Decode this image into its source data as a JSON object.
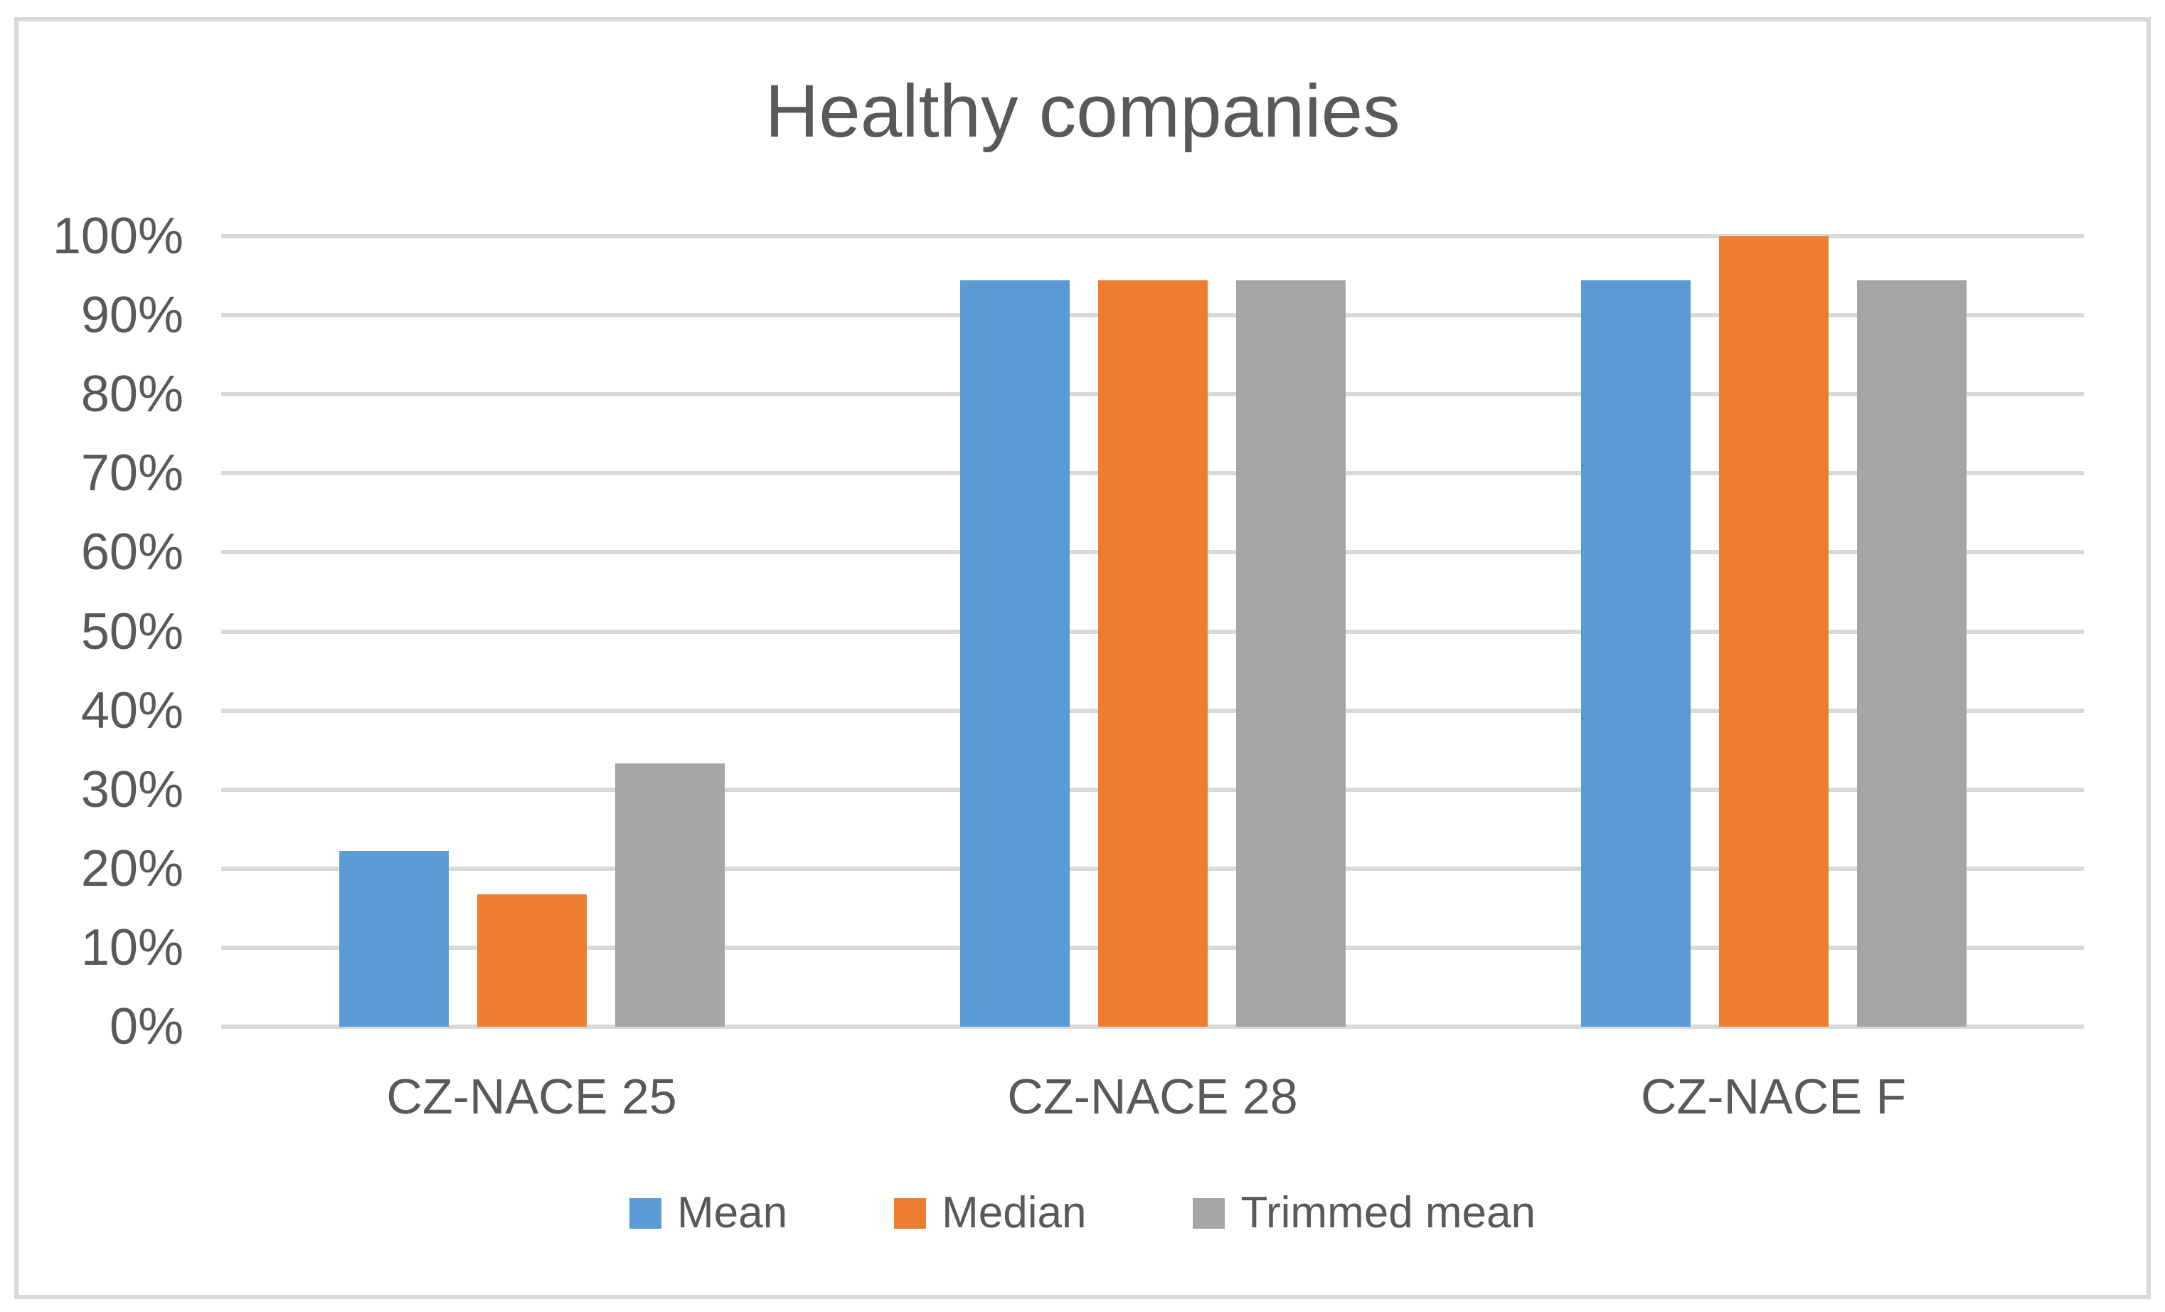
{
  "chart_data": {
    "type": "bar",
    "title": "Healthy companies",
    "categories": [
      "CZ-NACE 25",
      "CZ-NACE 28",
      "CZ-NACE F"
    ],
    "series": [
      {
        "name": "Mean",
        "color": "#5B9BD5",
        "values": [
          22.2,
          94.4,
          94.4
        ]
      },
      {
        "name": "Median",
        "color": "#ED7D31",
        "values": [
          16.7,
          94.4,
          100
        ]
      },
      {
        "name": "Trimmed mean",
        "color": "#A5A5A5",
        "values": [
          33.3,
          94.4,
          94.4
        ]
      }
    ],
    "y_axis": {
      "min": 0,
      "max": 100,
      "step": 10,
      "tick_labels": [
        "100%",
        "90%",
        "80%",
        "70%",
        "60%",
        "50%",
        "40%",
        "30%",
        "20%",
        "10%",
        "0%"
      ],
      "format": "percent"
    },
    "grid": true,
    "legend_position": "bottom",
    "colors": {
      "gridline": "#D9D9D9",
      "frame_border": "#D9D9D9",
      "text": "#595959",
      "background": "#FFFFFF"
    }
  }
}
